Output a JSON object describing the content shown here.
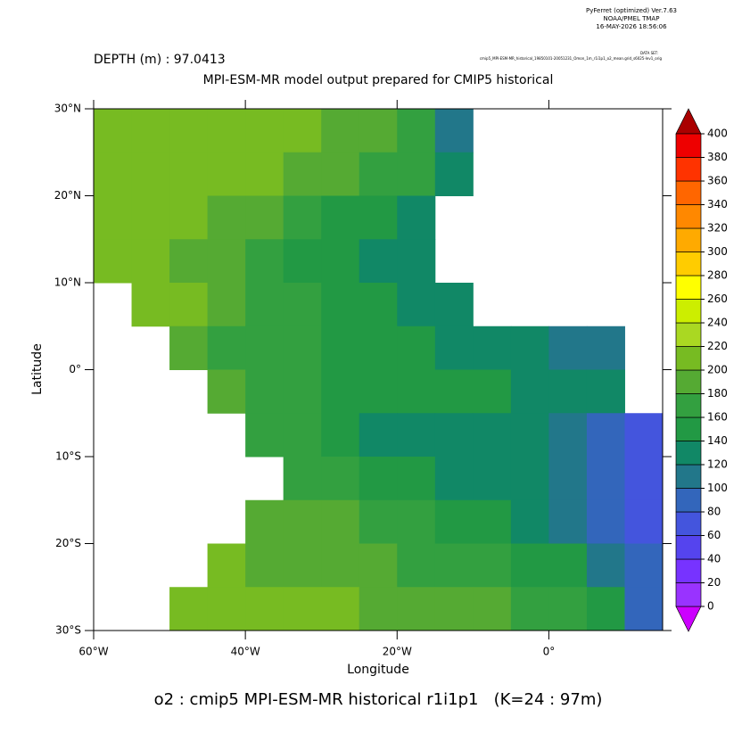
{
  "annotations": {
    "software": "PyFerret (optimized) Ver.7.63",
    "lab": "NOAA/PMEL TMAP",
    "timestamp": "16-MAY-2026 18:56:06",
    "depth_label": "DEPTH (m) : 97.0413",
    "dataset_label": "DATA SET:",
    "dataset_file": "cmip5_MPI-ESM-MR_historical_19850101-20051231_Omon_1m_r1i1p1_o2_mean.grid_s6025-lev1_orig",
    "footer": "o2 : cmip5 MPI-ESM-MR historical r1i1p1   (K=24 : 97m)"
  },
  "chart_data": {
    "type": "heatmap",
    "title": "MPI-ESM-MR model output prepared for CMIP5 historical",
    "x_label": "Longitude",
    "y_label": "Latitude",
    "xlim": [
      -60,
      15
    ],
    "ylim": [
      -30,
      30
    ],
    "xticks": [
      {
        "value": -60,
        "label": "60°W"
      },
      {
        "value": -40,
        "label": "40°W"
      },
      {
        "value": -20,
        "label": "20°W"
      },
      {
        "value": 0,
        "label": "0°"
      }
    ],
    "yticks": [
      {
        "value": 30,
        "label": "30°N"
      },
      {
        "value": 20,
        "label": "20°N"
      },
      {
        "value": 10,
        "label": "10°N"
      },
      {
        "value": 0,
        "label": "0°"
      },
      {
        "value": -10,
        "label": "10°S"
      },
      {
        "value": -20,
        "label": "20°S"
      },
      {
        "value": -30,
        "label": "30°S"
      }
    ],
    "x": [
      -57.5,
      -52.5,
      -47.5,
      -42.5,
      -37.5,
      -32.5,
      -27.5,
      -22.5,
      -17.5,
      -12.5,
      -7.5,
      -2.5,
      2.5,
      7.5,
      12.5
    ],
    "y": [
      27.5,
      22.5,
      17.5,
      12.5,
      7.5,
      2.5,
      -2.5,
      -7.5,
      -12.5,
      -17.5,
      -22.5,
      -27.5
    ],
    "values": [
      [
        215,
        215,
        210,
        210,
        205,
        200,
        195,
        190,
        175,
        110,
        null,
        null,
        null,
        null,
        null
      ],
      [
        215,
        215,
        210,
        205,
        200,
        195,
        185,
        175,
        160,
        120,
        null,
        null,
        null,
        null,
        null
      ],
      [
        215,
        210,
        205,
        195,
        185,
        170,
        155,
        140,
        135,
        null,
        null,
        null,
        null,
        null,
        null
      ],
      [
        210,
        205,
        195,
        185,
        170,
        155,
        140,
        135,
        130,
        null,
        null,
        null,
        null,
        null,
        null
      ],
      [
        null,
        210,
        200,
        185,
        170,
        160,
        150,
        140,
        130,
        125,
        null,
        null,
        null,
        null,
        null
      ],
      [
        null,
        null,
        190,
        175,
        165,
        160,
        150,
        145,
        140,
        130,
        125,
        120,
        115,
        110,
        null
      ],
      [
        null,
        null,
        null,
        180,
        170,
        160,
        145,
        140,
        150,
        145,
        140,
        135,
        130,
        125,
        null
      ],
      [
        null,
        null,
        null,
        null,
        175,
        170,
        150,
        125,
        130,
        135,
        130,
        120,
        110,
        95,
        75
      ],
      [
        null,
        null,
        null,
        null,
        null,
        175,
        165,
        150,
        140,
        130,
        125,
        120,
        110,
        90,
        70
      ],
      [
        null,
        null,
        null,
        null,
        190,
        185,
        180,
        170,
        160,
        150,
        140,
        130,
        110,
        80,
        65
      ],
      [
        null,
        null,
        null,
        200,
        195,
        190,
        185,
        180,
        175,
        170,
        160,
        150,
        140,
        110,
        80
      ],
      [
        null,
        null,
        215,
        215,
        210,
        205,
        200,
        195,
        190,
        185,
        180,
        175,
        170,
        150,
        80
      ]
    ],
    "colorbar": {
      "levels": [
        0,
        20,
        40,
        60,
        80,
        100,
        120,
        140,
        160,
        180,
        200,
        220,
        240,
        260,
        280,
        300,
        320,
        340,
        360,
        380,
        400
      ],
      "colors": [
        "#cc00ff",
        "#9933ff",
        "#7733ff",
        "#5544ee",
        "#4455dd",
        "#3366bb",
        "#22778a",
        "#118866",
        "#229944",
        "#33a040",
        "#55aa33",
        "#77bb22",
        "#aad822",
        "#ccee00",
        "#ffff00",
        "#ffcc00",
        "#ffaa00",
        "#ff8800",
        "#ff6600",
        "#ff3300",
        "#ee0000",
        "#aa0000"
      ]
    }
  }
}
